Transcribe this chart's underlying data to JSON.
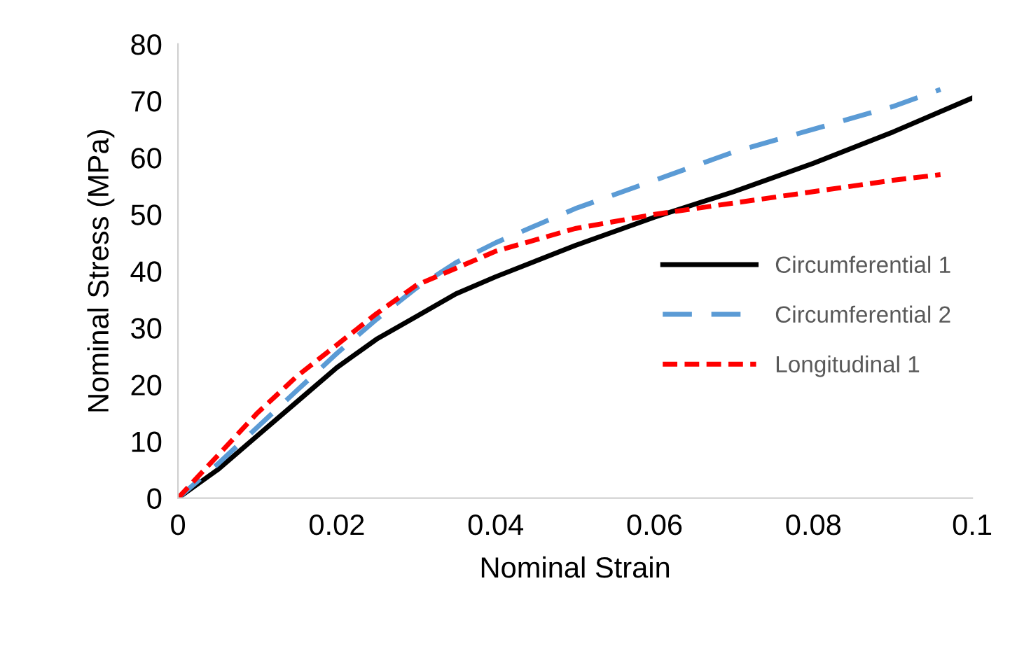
{
  "chart_data": {
    "type": "line",
    "xlabel": "Nominal Strain",
    "ylabel": "Nominal Stress (MPa)",
    "xlim": [
      0,
      0.1
    ],
    "ylim": [
      0,
      80
    ],
    "xticks": [
      0,
      0.02,
      0.04,
      0.06,
      0.08,
      0.1
    ],
    "yticks": [
      0,
      10,
      20,
      30,
      40,
      50,
      60,
      70,
      80
    ],
    "grid": false,
    "legend": "right",
    "marker": "none",
    "series": [
      {
        "name": "Circumferential 1",
        "color": "#000000",
        "line_style": "solid",
        "x": [
          0,
          0.005,
          0.01,
          0.015,
          0.02,
          0.025,
          0.03,
          0.035,
          0.04,
          0.05,
          0.06,
          0.07,
          0.08,
          0.09,
          0.1
        ],
        "values": [
          0,
          5,
          11,
          17,
          23,
          28,
          32,
          36,
          39,
          44.5,
          49.5,
          54,
          59,
          64.5,
          70.5
        ]
      },
      {
        "name": "Circumferential 2",
        "color": "#5b9bd5",
        "line_style": "dashed",
        "x": [
          0,
          0.005,
          0.01,
          0.015,
          0.02,
          0.025,
          0.03,
          0.035,
          0.04,
          0.05,
          0.06,
          0.07,
          0.08,
          0.09,
          0.096
        ],
        "values": [
          0,
          6,
          12.5,
          19,
          25.5,
          31.5,
          37,
          41.5,
          45,
          51,
          56,
          61,
          65,
          69,
          72
        ]
      },
      {
        "name": "Longitudinal 1",
        "color": "#ff0000",
        "line_style": "dotted",
        "x": [
          0,
          0.005,
          0.01,
          0.015,
          0.02,
          0.025,
          0.03,
          0.035,
          0.04,
          0.05,
          0.06,
          0.07,
          0.08,
          0.09,
          0.096
        ],
        "values": [
          0,
          7.5,
          15,
          21.5,
          27,
          32.5,
          37.5,
          40.5,
          43.5,
          47.5,
          50,
          52,
          54,
          56,
          57
        ]
      }
    ]
  }
}
